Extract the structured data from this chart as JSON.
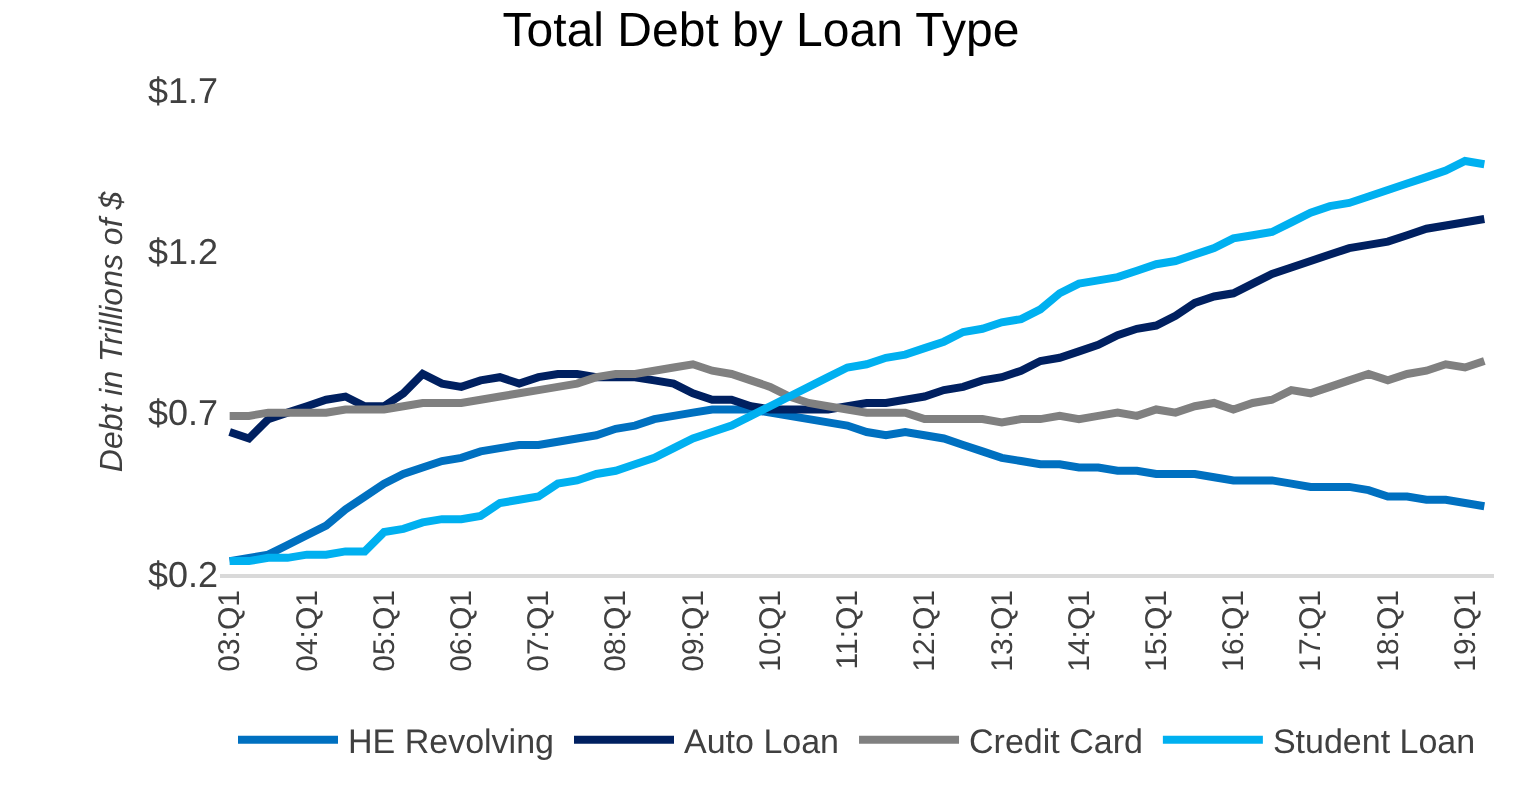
{
  "chart_data": {
    "type": "line",
    "title": "Total Debt by Loan Type",
    "ylabel": "Debt in Trillions of $",
    "categories": [
      "03:Q1",
      null,
      null,
      null,
      "04:Q1",
      null,
      null,
      null,
      "05:Q1",
      null,
      null,
      null,
      "06:Q1",
      null,
      null,
      null,
      "07:Q1",
      null,
      null,
      null,
      "08:Q1",
      null,
      null,
      null,
      "09:Q1",
      null,
      null,
      null,
      "10:Q1",
      null,
      null,
      null,
      "11:Q1",
      null,
      null,
      null,
      "12:Q1",
      null,
      null,
      null,
      "13:Q1",
      null,
      null,
      null,
      "14:Q1",
      null,
      null,
      null,
      "15:Q1",
      null,
      null,
      null,
      "16:Q1",
      null,
      null,
      null,
      "17:Q1",
      null,
      null,
      null,
      "18:Q1",
      null,
      null,
      null,
      "19:Q1",
      null
    ],
    "series": [
      {
        "name": "HE Revolving",
        "color": "#0070c0",
        "values": [
          0.24,
          0.25,
          0.26,
          0.29,
          0.32,
          0.35,
          0.4,
          0.44,
          0.48,
          0.51,
          0.53,
          0.55,
          0.56,
          0.58,
          0.59,
          0.6,
          0.6,
          0.61,
          0.62,
          0.63,
          0.65,
          0.66,
          0.68,
          0.69,
          0.7,
          0.71,
          0.71,
          0.71,
          0.7,
          0.69,
          0.68,
          0.67,
          0.66,
          0.64,
          0.63,
          0.64,
          0.63,
          0.62,
          0.6,
          0.58,
          0.56,
          0.55,
          0.54,
          0.54,
          0.53,
          0.53,
          0.52,
          0.52,
          0.51,
          0.51,
          0.51,
          0.5,
          0.49,
          0.49,
          0.49,
          0.48,
          0.47,
          0.47,
          0.47,
          0.46,
          0.44,
          0.44,
          0.43,
          0.43,
          0.42,
          0.41
        ]
      },
      {
        "name": "Auto Loan",
        "color": "#002060",
        "values": [
          0.64,
          0.62,
          0.68,
          0.7,
          0.72,
          0.74,
          0.75,
          0.72,
          0.72,
          0.76,
          0.82,
          0.79,
          0.78,
          0.8,
          0.81,
          0.79,
          0.81,
          0.82,
          0.82,
          0.81,
          0.81,
          0.81,
          0.8,
          0.79,
          0.76,
          0.74,
          0.74,
          0.72,
          0.71,
          0.71,
          0.71,
          0.71,
          0.72,
          0.73,
          0.73,
          0.74,
          0.75,
          0.77,
          0.78,
          0.8,
          0.81,
          0.83,
          0.86,
          0.87,
          0.89,
          0.91,
          0.94,
          0.96,
          0.97,
          1.0,
          1.04,
          1.06,
          1.07,
          1.1,
          1.13,
          1.15,
          1.17,
          1.19,
          1.21,
          1.22,
          1.23,
          1.25,
          1.27,
          1.28,
          1.29,
          1.3
        ]
      },
      {
        "name": "Credit Card",
        "color": "#808080",
        "values": [
          0.69,
          0.69,
          0.7,
          0.7,
          0.7,
          0.7,
          0.71,
          0.71,
          0.71,
          0.72,
          0.73,
          0.73,
          0.73,
          0.74,
          0.75,
          0.76,
          0.77,
          0.78,
          0.79,
          0.81,
          0.82,
          0.82,
          0.83,
          0.84,
          0.85,
          0.83,
          0.82,
          0.8,
          0.78,
          0.75,
          0.73,
          0.72,
          0.71,
          0.7,
          0.7,
          0.7,
          0.68,
          0.68,
          0.68,
          0.68,
          0.67,
          0.68,
          0.68,
          0.69,
          0.68,
          0.69,
          0.7,
          0.69,
          0.71,
          0.7,
          0.72,
          0.73,
          0.71,
          0.73,
          0.74,
          0.77,
          0.76,
          0.78,
          0.8,
          0.82,
          0.8,
          0.82,
          0.83,
          0.85,
          0.84,
          0.86
        ]
      },
      {
        "name": "Student Loan",
        "color": "#00b0f0",
        "values": [
          0.24,
          0.24,
          0.25,
          0.25,
          0.26,
          0.26,
          0.27,
          0.27,
          0.33,
          0.34,
          0.36,
          0.37,
          0.37,
          0.38,
          0.42,
          0.43,
          0.44,
          0.48,
          0.49,
          0.51,
          0.52,
          0.54,
          0.56,
          0.59,
          0.62,
          0.64,
          0.66,
          0.69,
          0.72,
          0.75,
          0.78,
          0.81,
          0.84,
          0.85,
          0.87,
          0.88,
          0.9,
          0.92,
          0.95,
          0.96,
          0.98,
          0.99,
          1.02,
          1.07,
          1.1,
          1.11,
          1.12,
          1.14,
          1.16,
          1.17,
          1.19,
          1.21,
          1.24,
          1.25,
          1.26,
          1.29,
          1.32,
          1.34,
          1.35,
          1.37,
          1.39,
          1.41,
          1.43,
          1.45,
          1.48,
          1.47
        ]
      }
    ],
    "ylim": [
      0.2,
      1.7
    ],
    "yticks": [
      {
        "value": 0.2,
        "label": "$0.2"
      },
      {
        "value": 0.7,
        "label": "$0.7"
      },
      {
        "value": 1.2,
        "label": "$1.2"
      },
      {
        "value": 1.7,
        "label": "$1.7"
      }
    ],
    "legend": "bottom",
    "marker": "none",
    "line_style": "solid"
  }
}
